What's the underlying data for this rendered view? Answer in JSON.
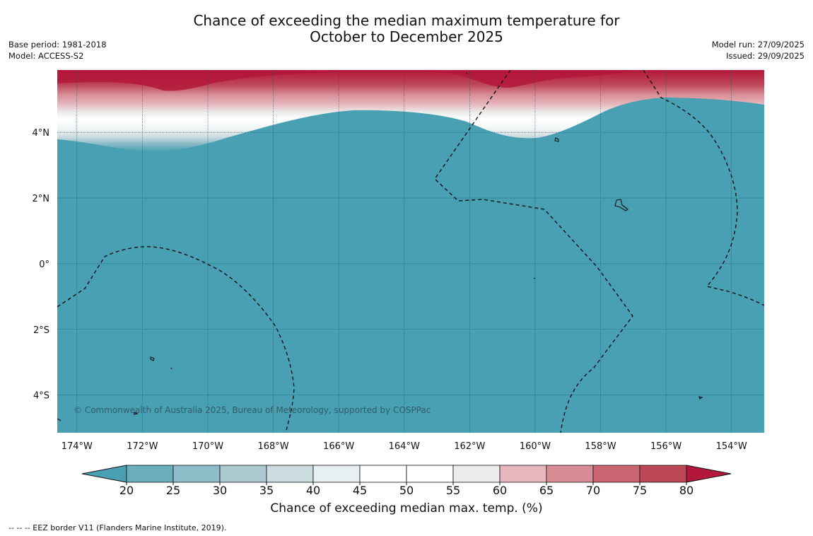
{
  "title": {
    "line1": "Chance of exceeding the median maximum temperature for",
    "line2": "October to December 2025"
  },
  "meta": {
    "base_period": "Base period: 1981-2018",
    "model": "Model: ACCESS-S2",
    "model_run": "Model run: 27/09/2025",
    "issued": "Issued: 29/09/2025"
  },
  "map": {
    "copyright": "© Commonwealth of Australia 2025, Bureau of Meteorology, supported by COSPPac",
    "lat_labels": [
      {
        "lat": 4,
        "label": "4°N"
      },
      {
        "lat": 2,
        "label": "2°N"
      },
      {
        "lat": 0,
        "label": "0°"
      },
      {
        "lat": -2,
        "label": "2°S"
      },
      {
        "lat": -4,
        "label": "4°S"
      }
    ],
    "lon_labels": [
      {
        "lon": -174,
        "label": "174°W"
      },
      {
        "lon": -172,
        "label": "172°W"
      },
      {
        "lon": -170,
        "label": "170°W"
      },
      {
        "lon": -168,
        "label": "168°W"
      },
      {
        "lon": -166,
        "label": "166°W"
      },
      {
        "lon": -164,
        "label": "164°W"
      },
      {
        "lon": -162,
        "label": "162°W"
      },
      {
        "lon": -160,
        "label": "160°W"
      },
      {
        "lon": -158,
        "label": "158°W"
      },
      {
        "lon": -156,
        "label": "156°W"
      },
      {
        "lon": -154,
        "label": "154°W"
      }
    ],
    "lon_range": [
      -174.6,
      -153.0
    ],
    "lat_range": [
      -5.15,
      5.9
    ],
    "background_color": "#48a0b2"
  },
  "colorbar": {
    "label": "Chance of exceeding median max. temp. (%)",
    "ticks": [
      "20",
      "25",
      "30",
      "35",
      "40",
      "45",
      "50",
      "55",
      "60",
      "65",
      "70",
      "75",
      "80"
    ],
    "under_color": "#48a0b2",
    "over_color": "#b3183a",
    "bin_colors": [
      "#6baebd",
      "#8dbdc8",
      "#acc9cf",
      "#cbdbe0",
      "#e8eff1",
      "#ffffff",
      "#ffffff",
      "#ececec",
      "#e6b7bd",
      "#d88c96",
      "#c96471",
      "#bd4657"
    ]
  },
  "footnote": "--  --  -- EEZ border V11 (Flanders Marine Institute, 2019)."
}
